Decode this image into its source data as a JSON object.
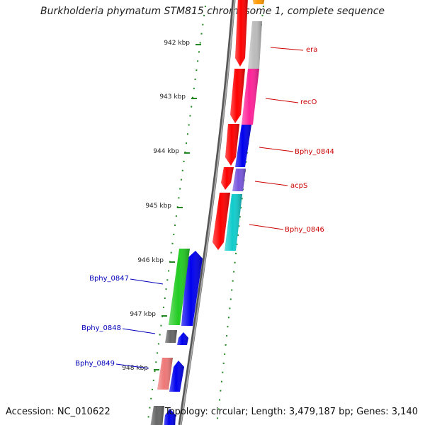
{
  "title": "Burkholderia phymatum STM815 chromosome 1, complete sequence",
  "accession": "Accession: NC_010622",
  "summary": "Topology: circular; Length: 3,479,187 bp; Genes: 3,140",
  "colors": {
    "tick": "#228822",
    "axis": "#777777",
    "right_label": "#cc0000",
    "left_label": "#0000bb",
    "outer_strand": "#ff0000",
    "inner_strand": "#0000ff"
  },
  "kbp_marks": [
    {
      "label": "942 kbp"
    },
    {
      "label": "943 kbp"
    },
    {
      "label": "944 kbp"
    },
    {
      "label": "945 kbp"
    },
    {
      "label": "946 kbp"
    },
    {
      "label": "947 kbp"
    },
    {
      "label": "948 kbp"
    }
  ],
  "genes_right": [
    {
      "name": "era",
      "color": "#bbbbbb"
    },
    {
      "name": "recO",
      "color": "#ff2299"
    },
    {
      "name": "Bphy_0844",
      "color": "#0000ee"
    },
    {
      "name": "acpS",
      "color": "#7755dd"
    },
    {
      "name": "Bphy_0846",
      "color": "#11cccc"
    }
  ],
  "genes_left": [
    {
      "name": "Bphy_0847",
      "color": "#22cc22"
    },
    {
      "name": "Bphy_0848",
      "color": "#666666"
    },
    {
      "name": "Bphy_0849",
      "color": "#ee7777"
    }
  ]
}
